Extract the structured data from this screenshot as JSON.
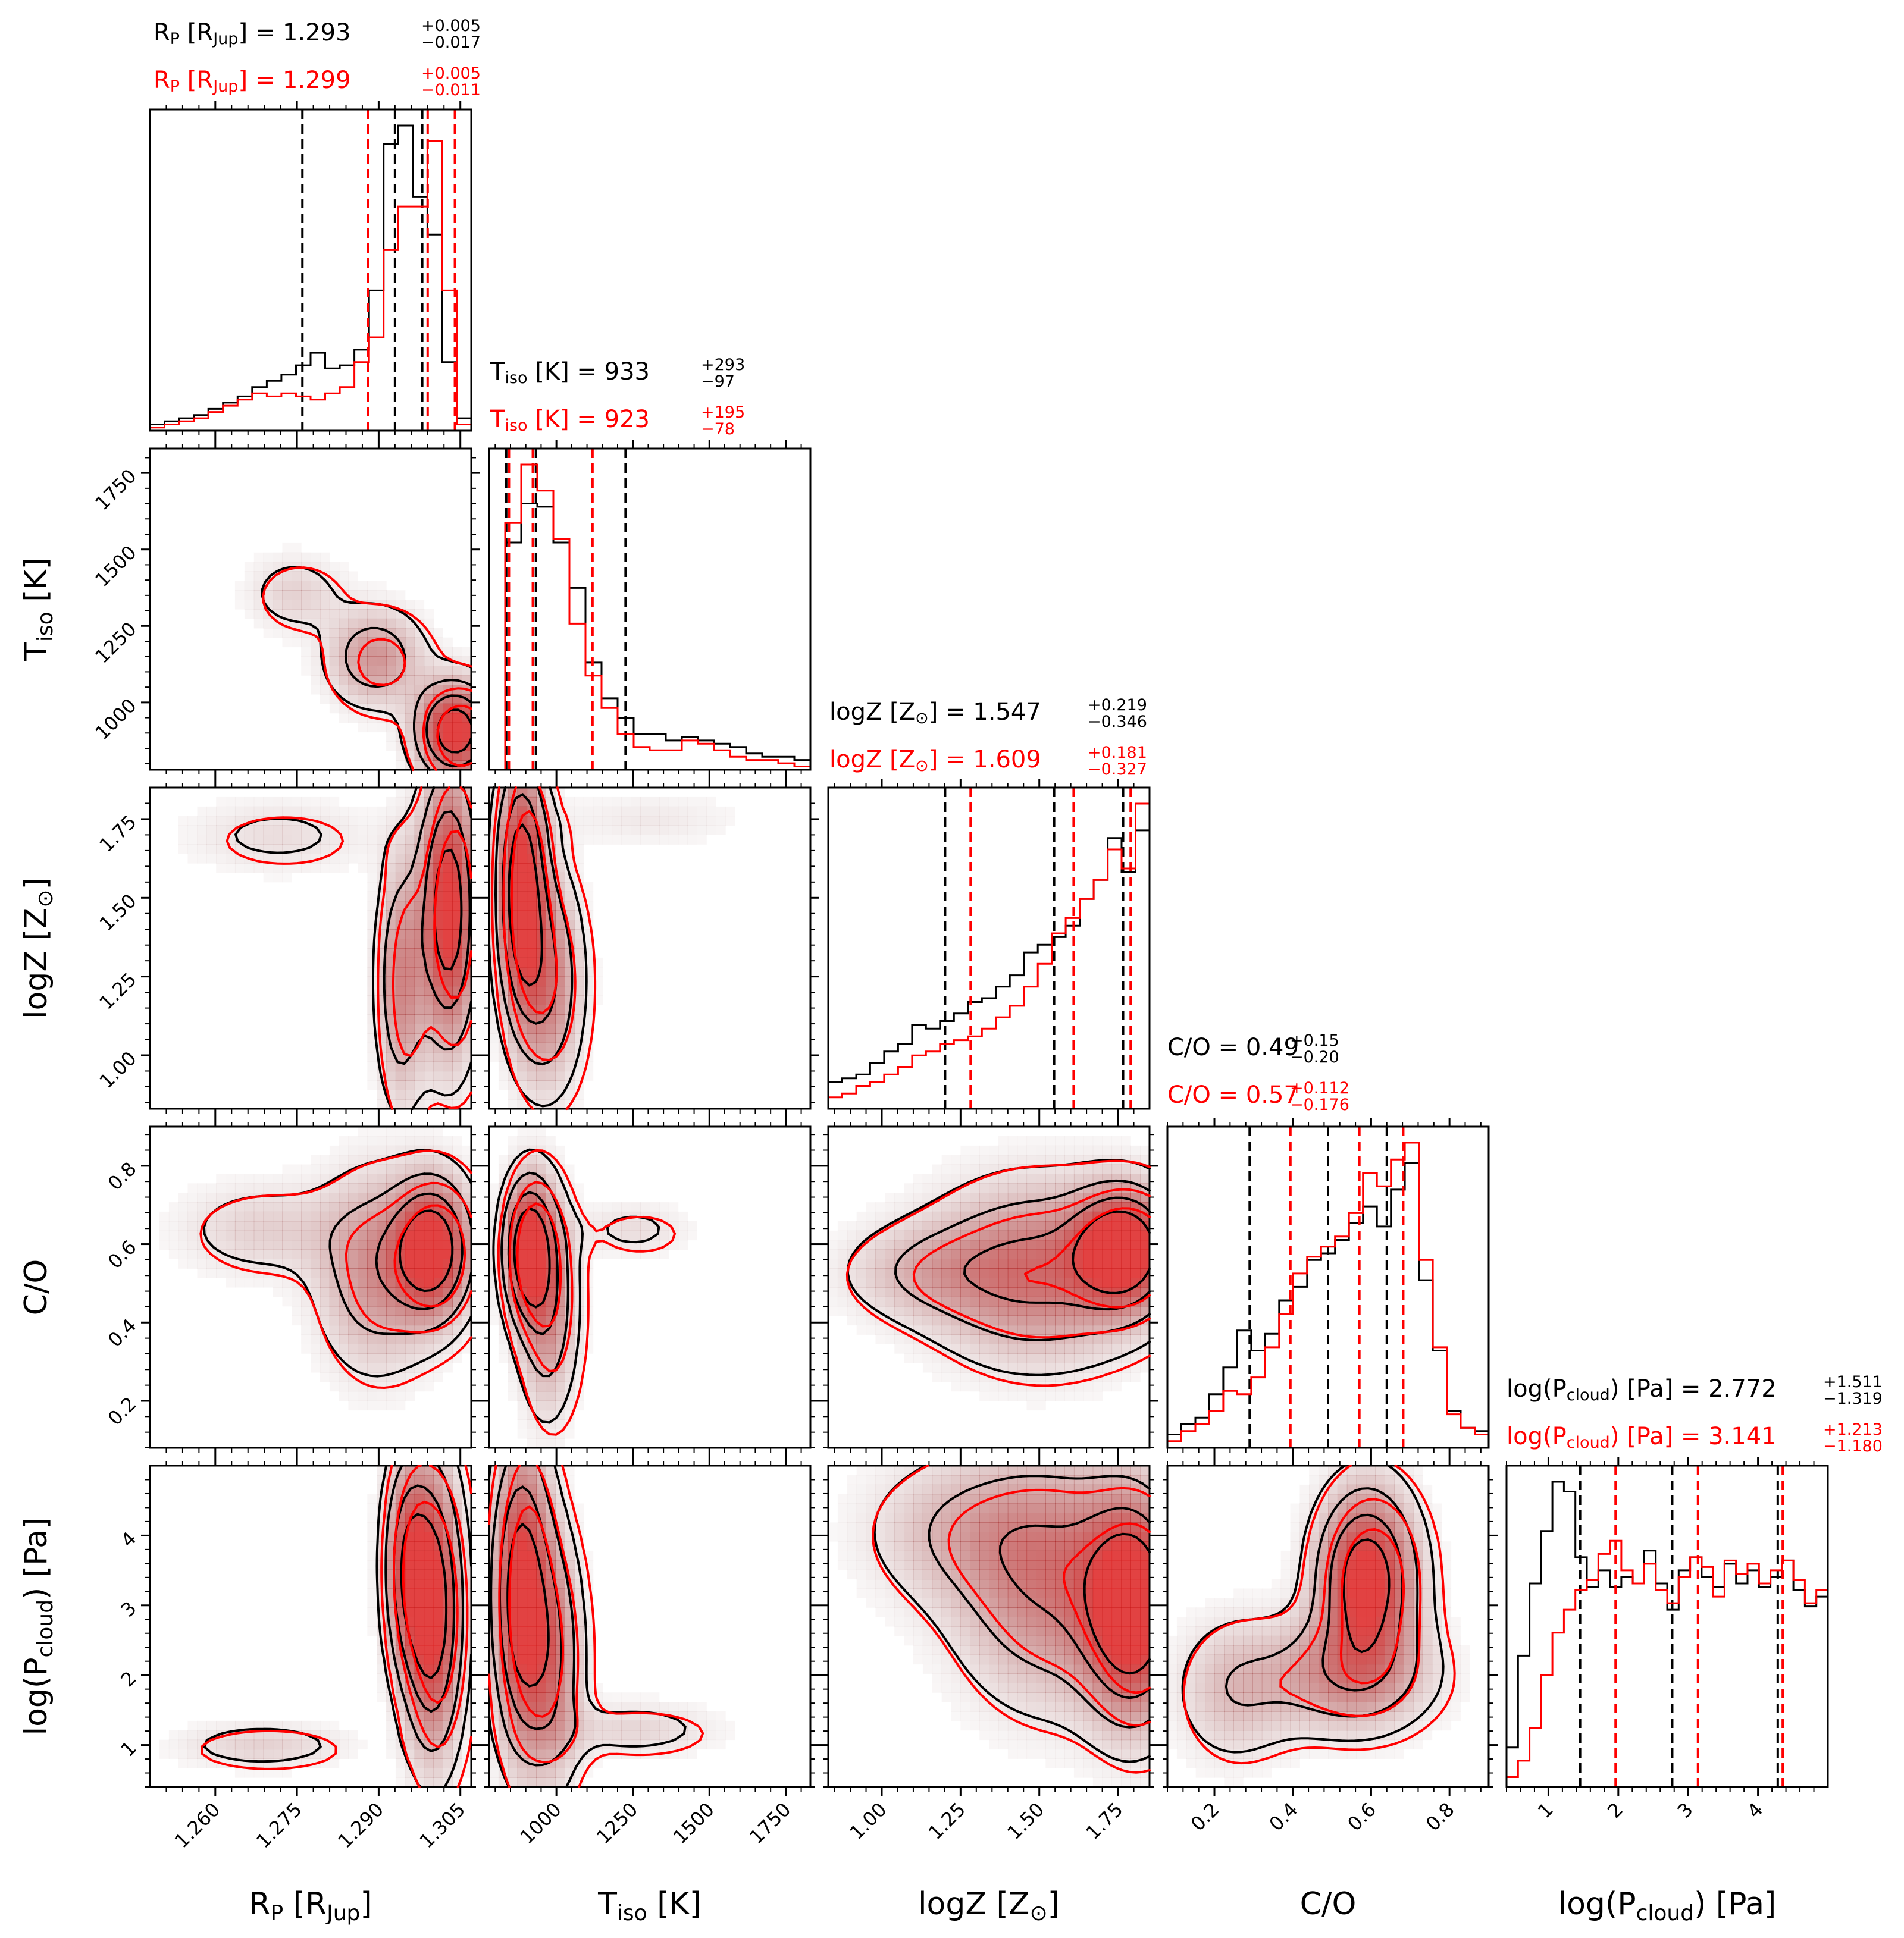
{
  "colors": {
    "black_run": "#000000",
    "red_run": "#ff0000",
    "frame": "#000000"
  },
  "parameters": [
    {
      "key": "rp",
      "axis_label": "R_P [R_Jup]",
      "range": [
        1.248,
        1.307
      ],
      "ticks": [
        1.26,
        1.275,
        1.29,
        1.305
      ],
      "tick_labels": [
        "1.260",
        "1.275",
        "1.290",
        "1.305"
      ]
    },
    {
      "key": "tiso",
      "axis_label": "T_iso [K]",
      "range": [
        780,
        1830
      ],
      "ticks": [
        1000,
        1250,
        1500,
        1750
      ],
      "tick_labels": [
        "1000",
        "1250",
        "1500",
        "1750"
      ]
    },
    {
      "key": "logz",
      "axis_label": "logZ [Z_sun]",
      "range": [
        0.83,
        1.85
      ],
      "ticks": [
        1.0,
        1.25,
        1.5,
        1.75
      ],
      "tick_labels": [
        "1.00",
        "1.25",
        "1.50",
        "1.75"
      ]
    },
    {
      "key": "co",
      "axis_label": "C/O",
      "range": [
        0.08,
        0.9
      ],
      "ticks": [
        0.2,
        0.4,
        0.6,
        0.8
      ],
      "tick_labels": [
        "0.2",
        "0.4",
        "0.6",
        "0.8"
      ]
    },
    {
      "key": "logp",
      "axis_label": "log(P_cloud) [Pa]",
      "range": [
        0.4,
        5.0
      ],
      "ticks": [
        1,
        2,
        3,
        4
      ],
      "tick_labels": [
        "1",
        "2",
        "3",
        "4"
      ]
    }
  ],
  "axis_text": {
    "rp": {
      "main": "R",
      "sub": "P",
      "tail": " [R",
      "sub2": "Jup",
      "tail2": "]"
    },
    "tiso": {
      "main": "T",
      "sub": "iso",
      "tail": " [K]",
      "sub2": "",
      "tail2": ""
    },
    "logz": {
      "main": "logZ [Z",
      "sub": "⊙",
      "tail": "]",
      "sub2": "",
      "tail2": ""
    },
    "co": {
      "main": "C/O",
      "sub": "",
      "tail": "",
      "sub2": "",
      "tail2": ""
    },
    "logp": {
      "main": "log(P",
      "sub": "cloud",
      "tail": ") [Pa]",
      "sub2": "",
      "tail2": ""
    }
  },
  "titles": [
    {
      "black": {
        "name": "R",
        "name_sub": "P",
        "name_tail": " [R",
        "name_sub2": "Jup",
        "name_tail2": "] = ",
        "value": "1.293",
        "plus": "+0.005",
        "minus": "−0.017"
      },
      "red": {
        "name": "R",
        "name_sub": "P",
        "name_tail": " [R",
        "name_sub2": "Jup",
        "name_tail2": "] = ",
        "value": "1.299",
        "plus": "+0.005",
        "minus": "−0.011"
      }
    },
    {
      "black": {
        "name": "T",
        "name_sub": "iso",
        "name_tail": " [K] = ",
        "name_sub2": "",
        "name_tail2": "",
        "value": "933",
        "plus": "+293",
        "minus": "−97"
      },
      "red": {
        "name": "T",
        "name_sub": "iso",
        "name_tail": " [K] = ",
        "name_sub2": "",
        "name_tail2": "",
        "value": "923",
        "plus": "+195",
        "minus": "−78"
      }
    },
    {
      "black": {
        "name": "logZ [Z",
        "name_sub": "⊙",
        "name_tail": "] = ",
        "name_sub2": "",
        "name_tail2": "",
        "value": "1.547",
        "plus": "+0.219",
        "minus": "−0.346"
      },
      "red": {
        "name": "logZ [Z",
        "name_sub": "⊙",
        "name_tail": "] = ",
        "name_sub2": "",
        "name_tail2": "",
        "value": "1.609",
        "plus": "+0.181",
        "minus": "−0.327"
      }
    },
    {
      "black": {
        "name": "C/O = ",
        "name_sub": "",
        "name_tail": "",
        "name_sub2": "",
        "name_tail2": "",
        "value": "0.49",
        "plus": "+0.15",
        "minus": "−0.20"
      },
      "red": {
        "name": "C/O = ",
        "name_sub": "",
        "name_tail": "",
        "name_sub2": "",
        "name_tail2": "",
        "value": "0.57",
        "plus": "+0.112",
        "minus": "−0.176"
      }
    },
    {
      "black": {
        "name": "log(P",
        "name_sub": "cloud",
        "name_tail": ") [Pa] = ",
        "name_sub2": "",
        "name_tail2": "",
        "value": "2.772",
        "plus": "+1.511",
        "minus": "−1.319"
      },
      "red": {
        "name": "log(P",
        "name_sub": "cloud",
        "name_tail": ") [Pa] = ",
        "name_sub2": "",
        "name_tail2": "",
        "value": "3.141",
        "plus": "+1.213",
        "minus": "−1.180"
      }
    }
  ],
  "chart_data": {
    "type": "corner",
    "series": [
      {
        "name": "",
        "color": "#000000",
        "quantiles": [
          [
            1.276,
            1.293,
            1.298
          ],
          [
            836,
            933,
            1226
          ],
          [
            1.201,
            1.547,
            1.766
          ],
          [
            0.29,
            0.49,
            0.64
          ],
          [
            1.453,
            2.772,
            4.283
          ]
        ],
        "histograms": [
          [
            2,
            3,
            4,
            5,
            7,
            9,
            11,
            14,
            16,
            18,
            21,
            25,
            20,
            21,
            26,
            45,
            92,
            98,
            75,
            63,
            22,
            4
          ],
          [
            0,
            70,
            82,
            81,
            70,
            56,
            33,
            22,
            16,
            11,
            11,
            9,
            10,
            9,
            8,
            7,
            5,
            4,
            4,
            3
          ],
          [
            7,
            8,
            9,
            12,
            15,
            17,
            22,
            21,
            23,
            25,
            28,
            29,
            32,
            35,
            41,
            43,
            45,
            48,
            55,
            60,
            71,
            62,
            73
          ],
          [
            4,
            7,
            9,
            16,
            24,
            35,
            29,
            34,
            44,
            48,
            56,
            58,
            62,
            67,
            72,
            66,
            77,
            85,
            50,
            29,
            11,
            6,
            5
          ],
          [
            12,
            40,
            62,
            78,
            93,
            90,
            70,
            61,
            66,
            61,
            64,
            62,
            72,
            62,
            54,
            66,
            70,
            64,
            61,
            68,
            62,
            66,
            61,
            64,
            69,
            60,
            55,
            58
          ]
        ],
        "pair_modes": [
          [
            [
              1,
              0
            ],
            1.3,
            900
          ],
          [
            [
              2,
              0
            ],
            1.297,
            1.45
          ],
          [
            [
              2,
              1
            ],
            880,
            1.55
          ],
          [
            [
              3,
              0
            ],
            1.297,
            0.58
          ],
          [
            [
              3,
              1
            ],
            900,
            0.58
          ],
          [
            [
              3,
              2
            ],
            1.72,
            0.58
          ],
          [
            [
              4,
              0
            ],
            1.299,
            3.3
          ],
          [
            [
              4,
              1
            ],
            930,
            3.4
          ],
          [
            [
              4,
              2
            ],
            1.75,
            2.8
          ],
          [
            [
              4,
              3
            ],
            0.62,
            3.2
          ]
        ]
      },
      {
        "name": "",
        "color": "#ff0000",
        "quantiles": [
          [
            1.288,
            1.299,
            1.304
          ],
          [
            845,
            923,
            1118
          ],
          [
            1.282,
            1.609,
            1.79
          ],
          [
            0.394,
            0.57,
            0.682
          ],
          [
            1.961,
            3.141,
            4.354
          ]
        ],
        "histograms": [
          [
            1,
            2,
            3,
            4,
            6,
            8,
            10,
            12,
            11,
            12,
            11,
            10,
            12,
            14,
            22,
            30,
            58,
            72,
            72,
            93,
            45,
            2
          ],
          [
            0,
            76,
            94,
            86,
            71,
            45,
            29,
            19,
            11,
            7,
            6,
            6,
            9,
            8,
            6,
            4,
            3,
            3,
            2,
            1
          ],
          [
            3,
            4,
            6,
            7,
            9,
            11,
            14,
            15,
            17,
            18,
            19,
            21,
            24,
            27,
            32,
            38,
            46,
            50,
            55,
            60,
            68,
            63,
            80
          ],
          [
            2,
            5,
            7,
            11,
            17,
            16,
            21,
            30,
            40,
            52,
            57,
            60,
            63,
            70,
            82,
            78,
            86,
            91,
            56,
            30,
            10,
            6,
            4
          ],
          [
            3,
            8,
            18,
            34,
            47,
            54,
            60,
            63,
            71,
            75,
            66,
            62,
            68,
            60,
            56,
            64,
            70,
            67,
            58,
            69,
            65,
            68,
            62,
            66,
            69,
            63,
            56,
            60
          ]
        ]
      }
    ]
  }
}
